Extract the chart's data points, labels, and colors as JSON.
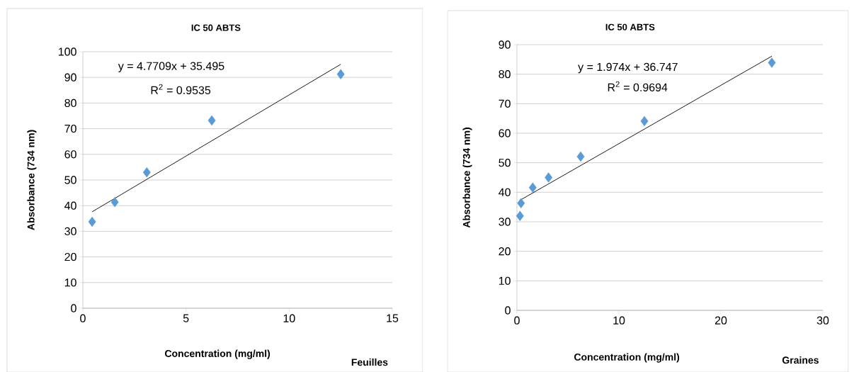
{
  "chart_data": [
    {
      "type": "scatter",
      "title": "IC 50 ABTS",
      "xlabel": "Concentration (mg/ml)",
      "ylabel": "Absorbance (734 nm)",
      "annotations": [
        "y = 4.7709x + 35.495",
        "R$^{2}$ = 0.9535",
        "Feuilles"
      ],
      "xlim": [
        0,
        15
      ],
      "ylim": [
        0,
        100
      ],
      "xticks": [
        0,
        5,
        10,
        15
      ],
      "yticks": [
        0,
        10,
        20,
        30,
        40,
        50,
        60,
        70,
        80,
        90,
        100
      ],
      "grid": "y",
      "series": [
        {
          "marker": "diamond",
          "color": "#5b9bd5",
          "x": [
            0.45,
            1.55,
            3.1,
            6.25,
            12.5
          ],
          "values": [
            33.7,
            41.4,
            53,
            73.2,
            91.2
          ]
        },
        {
          "type": "line",
          "marker": "none",
          "color": "#000000",
          "x": [
            0.45,
            12.5
          ],
          "values": [
            37.6,
            95.1
          ]
        }
      ]
    },
    {
      "type": "scatter",
      "title": "IC 50 ABTS",
      "xlabel": "Concentration (mg/ml)",
      "ylabel": "Absorbance (734 nm)",
      "annotations": [
        "y = 1.974x + 36.747",
        "R$^{2}$ = 0.9694",
        "Graines"
      ],
      "xlim": [
        0,
        30
      ],
      "ylim": [
        0,
        90
      ],
      "xticks": [
        0,
        10,
        20,
        30
      ],
      "yticks": [
        0,
        10,
        20,
        30,
        40,
        50,
        60,
        70,
        80,
        90
      ],
      "grid": "y",
      "series": [
        {
          "marker": "diamond",
          "color": "#5b9bd5",
          "x": [
            0.3,
            0.4,
            1.55,
            3.1,
            6.25,
            12.5,
            25
          ],
          "values": [
            32,
            36.3,
            41.6,
            45,
            52.1,
            64.1,
            83.9
          ]
        },
        {
          "type": "line",
          "marker": "none",
          "color": "#000000",
          "x": [
            0.3,
            25
          ],
          "values": [
            37.3,
            86.1
          ]
        }
      ]
    }
  ]
}
